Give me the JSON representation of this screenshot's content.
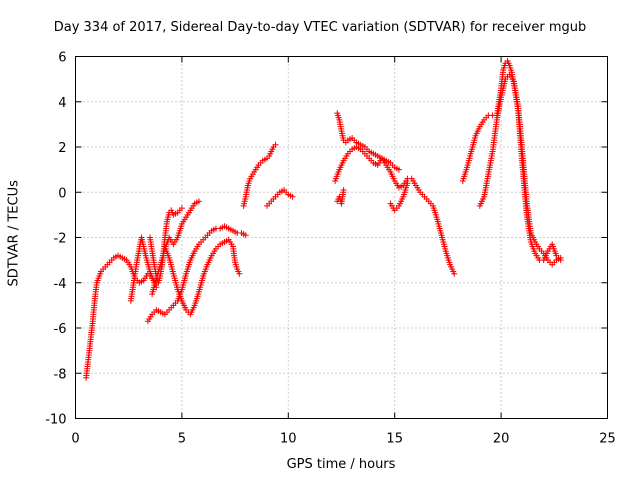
{
  "chart_data": {
    "type": "scatter",
    "title": "Day 334 of 2017, Sidereal Day-to-day VTEC variation (SDTVAR) for receiver mgub",
    "xlabel": "GPS time / hours",
    "ylabel": "SDTVAR / TECUs",
    "xlim": [
      0,
      25
    ],
    "ylim": [
      -10,
      6
    ],
    "xticks": [
      "0",
      "5",
      "10",
      "15",
      "20",
      "25"
    ],
    "yticks": [
      "-10",
      "-8",
      "-6",
      "-4",
      "-2",
      "0",
      "2",
      "4",
      "6"
    ],
    "grid": true,
    "marker": "+",
    "color": "#ff0000",
    "series": [
      {
        "x": [
          0.5,
          0.6,
          0.7,
          0.8,
          0.9,
          1.0,
          1.2,
          1.4,
          1.6,
          1.8,
          2.0,
          2.2,
          2.4,
          2.6,
          2.8,
          3.0,
          3.2,
          3.4,
          3.6,
          3.8
        ],
        "y": [
          -8.2,
          -7.4,
          -6.6,
          -5.8,
          -4.8,
          -4.0,
          -3.5,
          -3.3,
          -3.1,
          -2.9,
          -2.8,
          -2.9,
          -3.0,
          -3.3,
          -3.8,
          -4.0,
          -3.9,
          -3.6,
          -3.8,
          -4.0
        ]
      },
      {
        "x": [
          2.6,
          2.7,
          2.8,
          2.9,
          3.0,
          3.1,
          3.3,
          3.5,
          3.7,
          3.8
        ],
        "y": [
          -4.8,
          -4.2,
          -3.6,
          -3.0,
          -2.5,
          -2.0,
          -2.8,
          -3.5,
          -4.0,
          -4.2
        ]
      },
      {
        "x": [
          3.5,
          3.6,
          3.7,
          3.8,
          3.9,
          4.0,
          4.1,
          4.2,
          4.3,
          4.4,
          4.5,
          4.6,
          4.8,
          5.0
        ],
        "y": [
          -2.0,
          -2.6,
          -3.2,
          -3.7,
          -4.0,
          -3.6,
          -3.0,
          -2.0,
          -1.3,
          -0.9,
          -0.8,
          -1.0,
          -0.9,
          -0.7
        ]
      },
      {
        "x": [
          3.6,
          3.8,
          4.0,
          4.2,
          4.4,
          4.6,
          4.8,
          5.0,
          5.2,
          5.4,
          5.6,
          5.8
        ],
        "y": [
          -4.5,
          -3.8,
          -3.2,
          -2.5,
          -2.0,
          -2.3,
          -2.0,
          -1.4,
          -1.1,
          -0.8,
          -0.5,
          -0.4
        ]
      },
      {
        "x": [
          3.4,
          3.6,
          3.8,
          4.0,
          4.2,
          4.4,
          4.6,
          4.8,
          5.0,
          5.2,
          5.4,
          5.6,
          5.8,
          6.0,
          6.2,
          6.4,
          6.6,
          6.8,
          7.0,
          7.2,
          7.4,
          7.6,
          7.8,
          8.0
        ],
        "y": [
          -5.7,
          -5.4,
          -5.2,
          -5.3,
          -5.4,
          -5.2,
          -5.0,
          -4.8,
          -4.3,
          -3.6,
          -3.0,
          -2.6,
          -2.3,
          -2.1,
          -1.9,
          -1.7,
          -1.6,
          -1.6,
          -1.5,
          -1.6,
          -1.7,
          -1.8,
          -1.8,
          -1.9
        ]
      },
      {
        "x": [
          4.2,
          4.4,
          4.6,
          4.8,
          5.0,
          5.2,
          5.4,
          5.6,
          5.8,
          6.0,
          6.2,
          6.4,
          6.6,
          6.8,
          7.0,
          7.2,
          7.4,
          7.5,
          7.6,
          7.7
        ],
        "y": [
          -2.4,
          -2.9,
          -3.6,
          -4.3,
          -4.8,
          -5.2,
          -5.4,
          -5.0,
          -4.4,
          -3.7,
          -3.2,
          -2.8,
          -2.5,
          -2.3,
          -2.2,
          -2.1,
          -2.4,
          -3.1,
          -3.4,
          -3.6
        ]
      },
      {
        "x": [
          7.9,
          8.0,
          8.1,
          8.2,
          8.4,
          8.6,
          8.8,
          9.0,
          9.1,
          9.2,
          9.3,
          9.4
        ],
        "y": [
          -0.6,
          -0.2,
          0.3,
          0.6,
          0.9,
          1.2,
          1.4,
          1.5,
          1.6,
          1.8,
          2.0,
          2.1
        ]
      },
      {
        "x": [
          9.0,
          9.2,
          9.4,
          9.6,
          9.8,
          10.0,
          10.2
        ],
        "y": [
          -0.6,
          -0.4,
          -0.2,
          0.0,
          0.1,
          -0.1,
          -0.2
        ]
      },
      {
        "x": [
          12.3,
          12.4,
          12.5,
          12.6,
          12.7,
          12.8,
          13.0,
          13.2,
          13.4,
          13.6,
          13.8,
          14.0,
          14.2,
          14.4,
          14.6,
          14.8,
          15.0,
          15.2
        ],
        "y": [
          3.5,
          3.2,
          2.7,
          2.3,
          2.2,
          2.3,
          2.4,
          2.2,
          2.1,
          2.0,
          1.8,
          1.7,
          1.6,
          1.5,
          1.4,
          1.3,
          1.1,
          1.0
        ]
      },
      {
        "x": [
          12.2,
          12.4,
          12.6,
          12.8,
          13.0,
          13.2,
          13.4,
          13.6,
          13.8,
          14.0,
          14.2,
          14.4,
          14.6,
          14.8,
          15.0,
          15.2,
          15.4,
          15.6,
          15.8,
          16.0,
          16.2,
          16.4,
          16.6,
          16.8,
          17.0,
          17.2,
          17.4,
          17.6,
          17.8
        ],
        "y": [
          0.5,
          1.0,
          1.4,
          1.7,
          1.9,
          2.0,
          1.9,
          1.7,
          1.5,
          1.3,
          1.2,
          1.5,
          1.2,
          0.9,
          0.5,
          0.2,
          0.3,
          0.6,
          0.6,
          0.3,
          0.0,
          -0.2,
          -0.4,
          -0.6,
          -1.2,
          -1.9,
          -2.6,
          -3.2,
          -3.6
        ]
      },
      {
        "x": [
          12.3,
          12.4,
          12.5,
          12.6
        ],
        "y": [
          -0.4,
          -0.2,
          -0.5,
          0.1
        ]
      },
      {
        "x": [
          14.8,
          15.0,
          15.2,
          15.4,
          15.6
        ],
        "y": [
          -0.5,
          -0.8,
          -0.6,
          -0.2,
          0.4
        ]
      },
      {
        "x": [
          18.2,
          18.4,
          18.6,
          18.8,
          19.0,
          19.2,
          19.4,
          19.6,
          19.8,
          20.0,
          20.1,
          20.2,
          20.3,
          20.4,
          20.5,
          20.6,
          20.8,
          21.0,
          21.2,
          21.4,
          21.6,
          21.8,
          22.0,
          22.2,
          22.4,
          22.6,
          22.8
        ],
        "y": [
          0.5,
          1.1,
          1.8,
          2.5,
          2.9,
          3.2,
          3.4,
          3.4,
          3.4,
          4.6,
          5.4,
          5.7,
          5.8,
          5.6,
          5.3,
          4.8,
          3.6,
          1.2,
          -1.0,
          -2.2,
          -2.7,
          -3.0,
          -3.0,
          -2.6,
          -2.3,
          -2.8,
          -3.0
        ]
      },
      {
        "x": [
          19.0,
          19.2,
          19.4,
          19.6,
          19.8,
          20.0,
          20.2,
          20.4,
          20.6,
          20.8,
          21.0,
          21.2,
          21.4,
          21.6,
          21.8,
          22.0,
          22.2,
          22.4,
          22.6,
          22.8
        ],
        "y": [
          -0.6,
          -0.2,
          0.8,
          1.8,
          3.2,
          4.2,
          5.0,
          5.2,
          4.9,
          3.8,
          1.8,
          -0.4,
          -1.8,
          -2.2,
          -2.5,
          -2.7,
          -3.0,
          -3.2,
          -3.0,
          -2.9
        ]
      }
    ]
  }
}
